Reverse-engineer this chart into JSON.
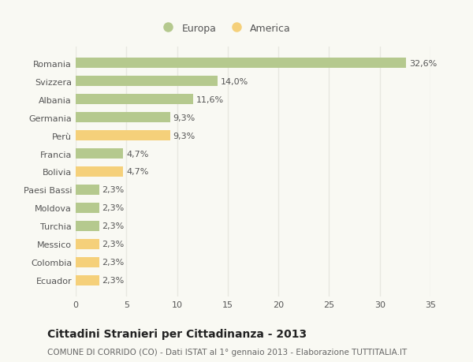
{
  "categories": [
    "Romania",
    "Svizzera",
    "Albania",
    "Germania",
    "Perù",
    "Francia",
    "Bolivia",
    "Paesi Bassi",
    "Moldova",
    "Turchia",
    "Messico",
    "Colombia",
    "Ecuador"
  ],
  "values": [
    32.6,
    14.0,
    11.6,
    9.3,
    9.3,
    4.7,
    4.7,
    2.3,
    2.3,
    2.3,
    2.3,
    2.3,
    2.3
  ],
  "labels": [
    "32,6%",
    "14,0%",
    "11,6%",
    "9,3%",
    "9,3%",
    "4,7%",
    "4,7%",
    "2,3%",
    "2,3%",
    "2,3%",
    "2,3%",
    "2,3%",
    "2,3%"
  ],
  "continents": [
    "Europa",
    "Europa",
    "Europa",
    "Europa",
    "America",
    "Europa",
    "America",
    "Europa",
    "Europa",
    "Europa",
    "America",
    "America",
    "America"
  ],
  "color_europa": "#b5c98e",
  "color_america": "#f5d07a",
  "legend_europa": "Europa",
  "legend_america": "America",
  "xlim": [
    0,
    35
  ],
  "xticks": [
    0,
    5,
    10,
    15,
    20,
    25,
    30,
    35
  ],
  "title": "Cittadini Stranieri per Cittadinanza - 2013",
  "subtitle": "COMUNE DI CORRIDO (CO) - Dati ISTAT al 1° gennaio 2013 - Elaborazione TUTTITALIA.IT",
  "background_color": "#f9f9f3",
  "grid_color": "#e8e8e0",
  "bar_height": 0.55,
  "label_fontsize": 8,
  "tick_fontsize": 8,
  "title_fontsize": 10,
  "subtitle_fontsize": 7.5,
  "label_color": "#555555",
  "title_color": "#222222",
  "subtitle_color": "#666666"
}
